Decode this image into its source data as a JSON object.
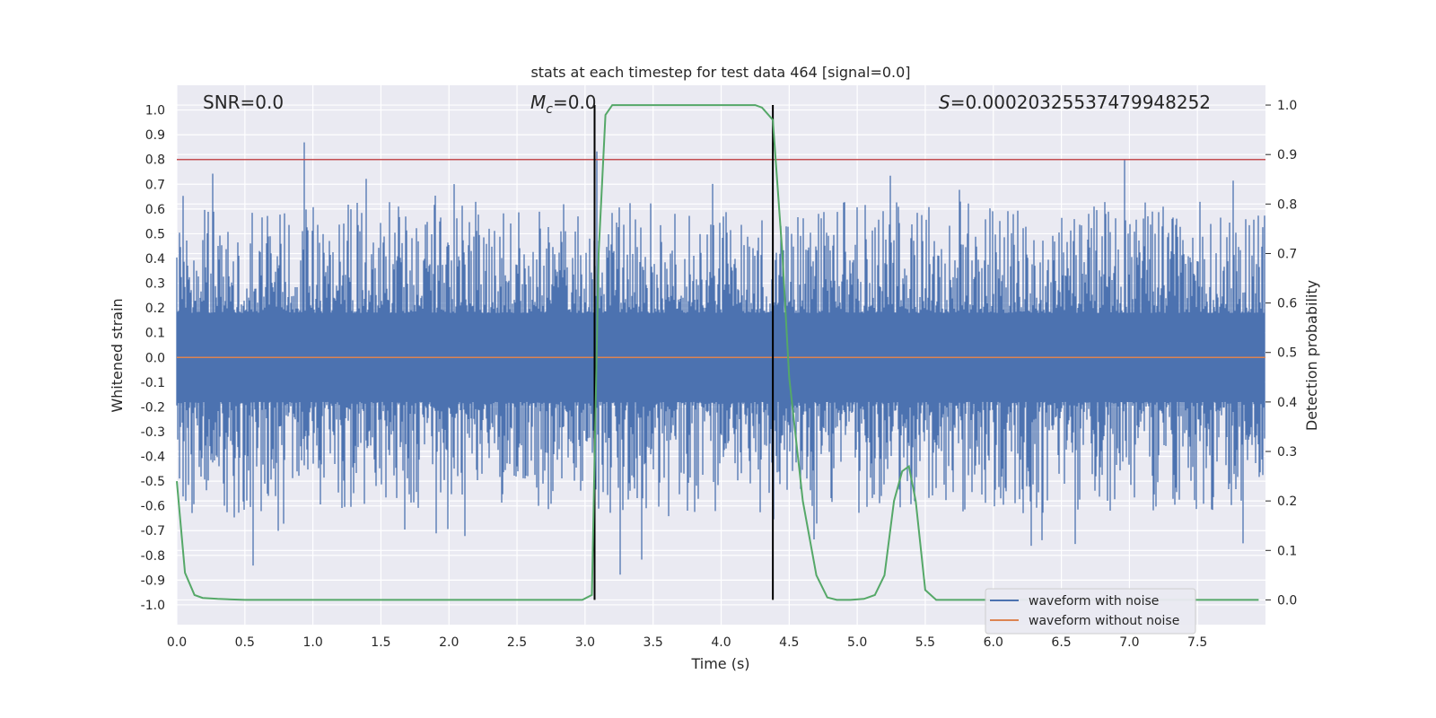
{
  "chart_data": {
    "type": "line",
    "title": "stats at each timestep for test data 464 [signal=0.0]",
    "xlabel": "Time (s)",
    "ylabel": "Whitened strain",
    "y2label": "Detection probability",
    "xlim": [
      0.0,
      8.0
    ],
    "ylim": [
      -1.08,
      1.1
    ],
    "y2lim": [
      -0.05,
      1.04
    ],
    "x_ticks": [
      "0.0",
      "0.5",
      "1.0",
      "1.5",
      "2.0",
      "2.5",
      "3.0",
      "3.5",
      "4.0",
      "4.5",
      "5.0",
      "5.5",
      "6.0",
      "6.5",
      "7.0",
      "7.5"
    ],
    "y_ticks": [
      "1.0",
      "0.9",
      "0.8",
      "0.7",
      "0.6",
      "0.5",
      "0.4",
      "0.3",
      "0.2",
      "0.1",
      "0.0",
      "-0.1",
      "-0.2",
      "-0.3",
      "-0.4",
      "-0.5",
      "-0.6",
      "-0.7",
      "-0.8",
      "-0.9",
      "-1.0"
    ],
    "y2_ticks": [
      "1.0",
      "0.9",
      "0.8",
      "0.7",
      "0.6",
      "0.5",
      "0.4",
      "0.3",
      "0.2",
      "0.1",
      "0.0"
    ],
    "grid": true,
    "annotations": {
      "snr": "SNR=0.0",
      "mc_symbol": "M",
      "mc_sub": "c",
      "mc_value": "=0.0",
      "s_symbol": "S",
      "s_value": "=0.00020325537479948252"
    },
    "threshold_line": {
      "y": 0.8,
      "color": "#c44e52"
    },
    "detection_window": {
      "x_start": 3.07,
      "x_end": 4.38
    },
    "series": [
      {
        "name": "waveform with noise",
        "color": "#4c72b0",
        "description": "whitened noisy strain, roughly within [-1, 1]"
      },
      {
        "name": "waveform without noise",
        "color": "#dd8452",
        "values_constant": 0.0
      },
      {
        "name": "detection probability",
        "color": "#55a868",
        "axis": "right",
        "x": [
          0.0,
          0.06,
          0.13,
          0.19,
          0.3,
          0.5,
          1.0,
          2.0,
          2.98,
          3.05,
          3.1,
          3.15,
          3.2,
          3.5,
          4.0,
          4.25,
          4.3,
          4.38,
          4.45,
          4.5,
          4.6,
          4.7,
          4.78,
          4.85,
          4.95,
          5.05,
          5.13,
          5.2,
          5.27,
          5.33,
          5.38,
          5.43,
          5.5,
          5.58,
          5.65,
          6.0,
          7.0,
          7.95
        ],
        "values": [
          0.24,
          0.055,
          0.01,
          0.004,
          0.002,
          0.0,
          0.0,
          0.0,
          0.0,
          0.01,
          0.7,
          0.98,
          1.0,
          1.0,
          1.0,
          1.0,
          0.995,
          0.97,
          0.7,
          0.45,
          0.2,
          0.05,
          0.005,
          0.0,
          0.0,
          0.002,
          0.01,
          0.05,
          0.2,
          0.26,
          0.27,
          0.2,
          0.02,
          0.0,
          0.0,
          0.0,
          0.0,
          0.0
        ]
      }
    ]
  }
}
